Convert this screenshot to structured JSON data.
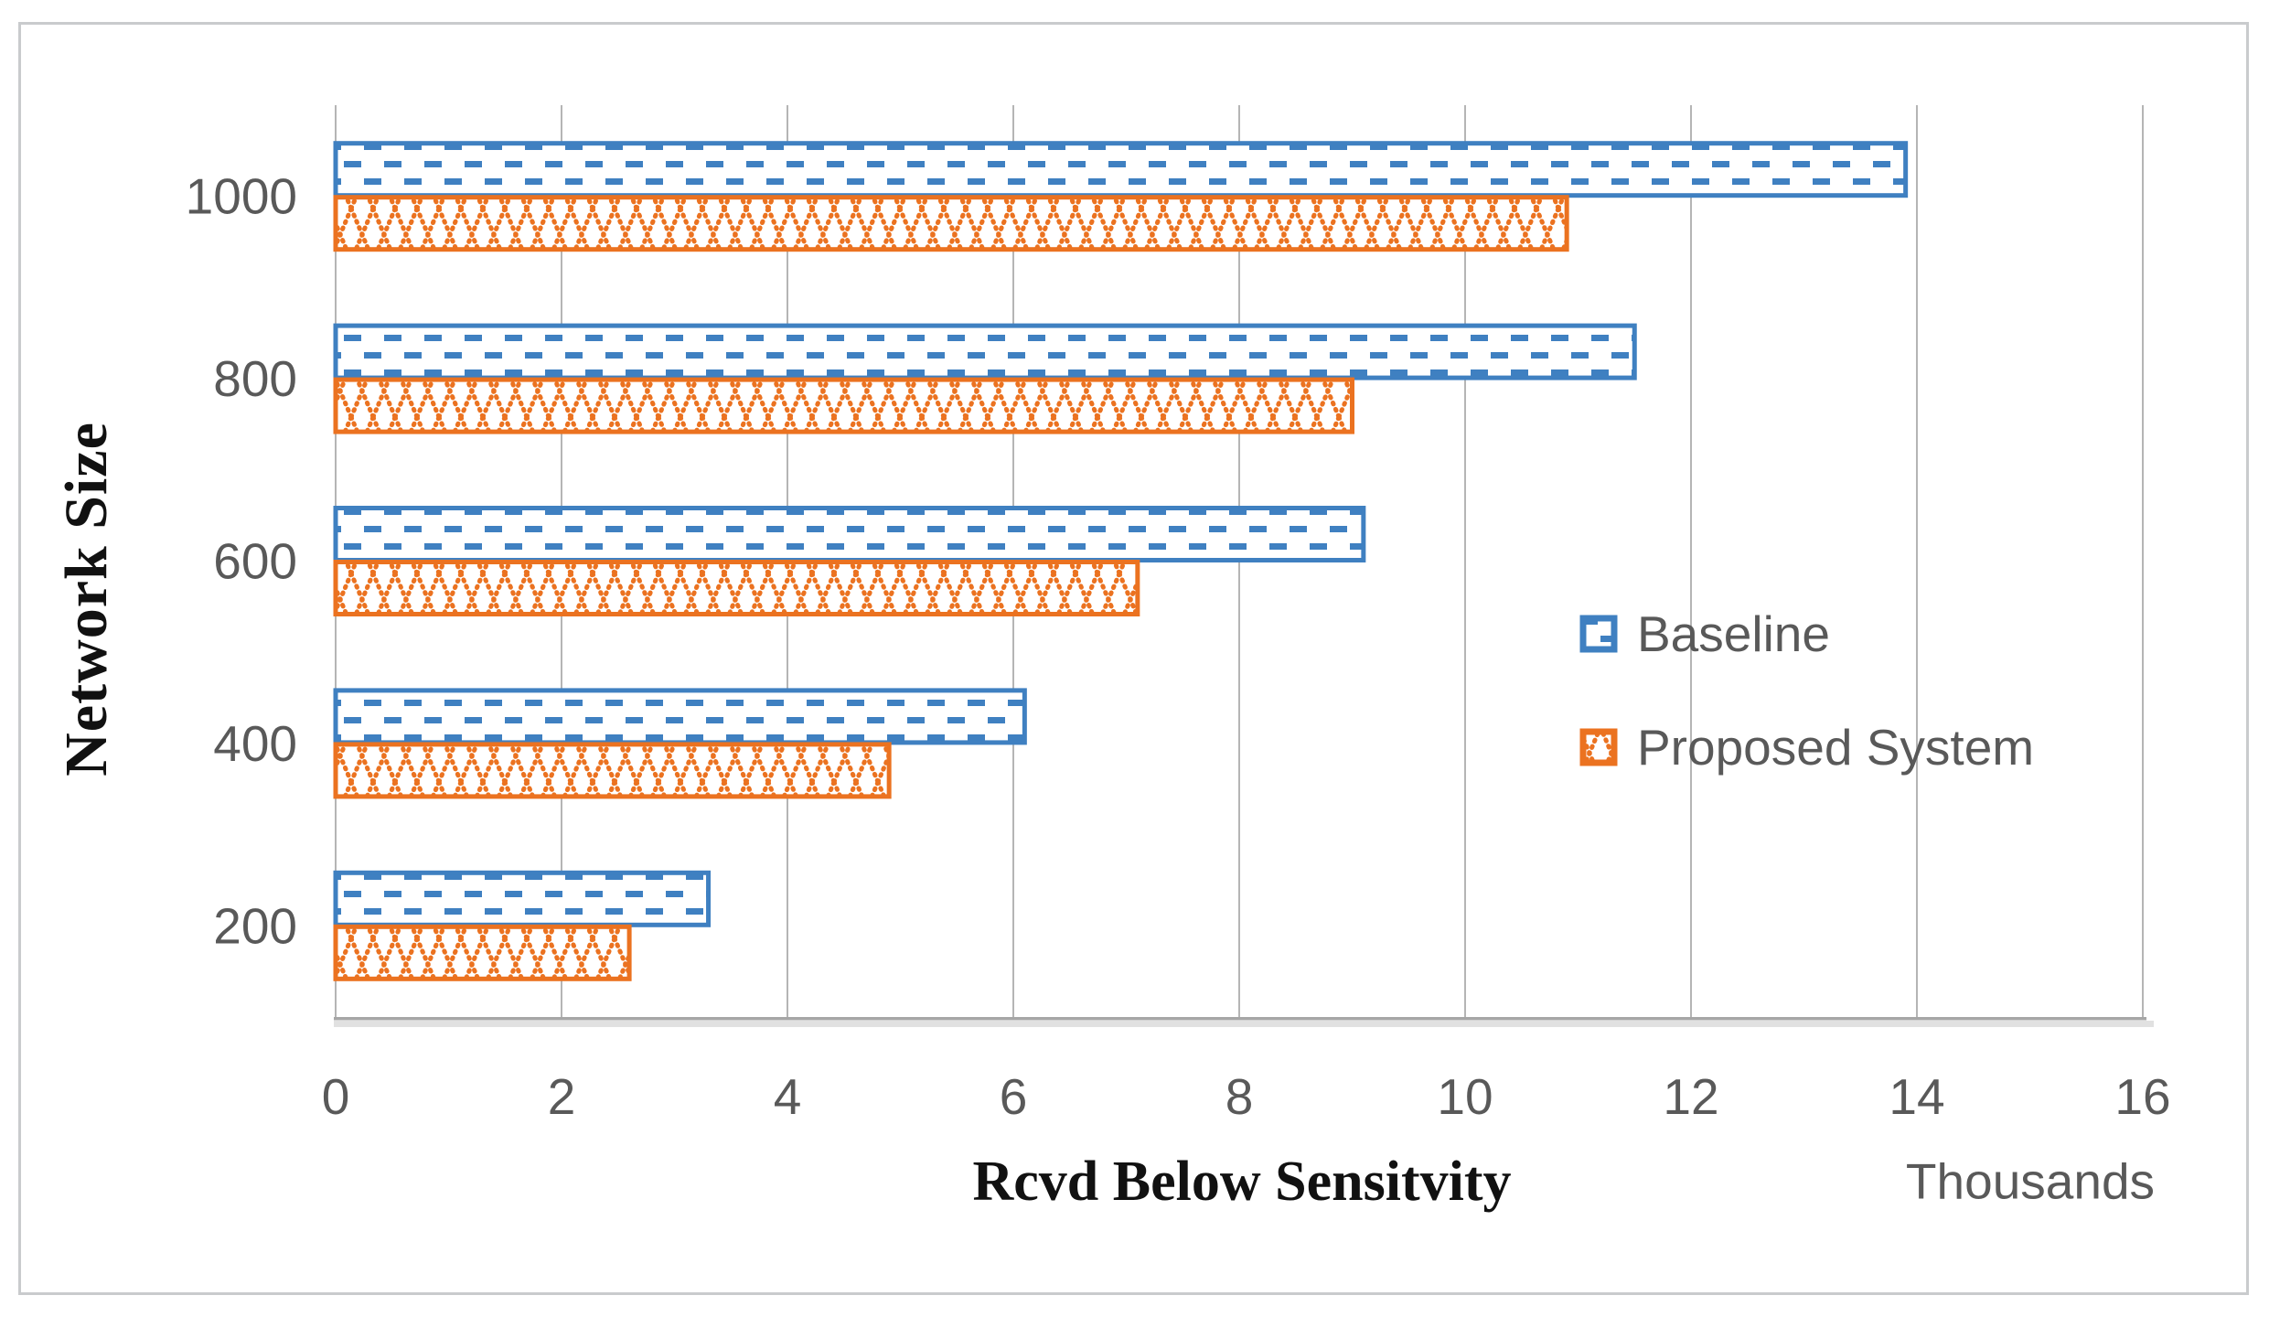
{
  "chart_data": {
    "type": "bar",
    "orientation": "horizontal",
    "title": "",
    "categories": [
      "1000",
      "800",
      "600",
      "400",
      "200"
    ],
    "series": [
      {
        "name": "Baseline",
        "values": [
          13.9,
          11.5,
          9.1,
          6.1,
          3.3
        ],
        "color": "#3f80c1",
        "pattern": "dashed-rows"
      },
      {
        "name": "Proposed System",
        "values": [
          10.9,
          9.0,
          7.1,
          4.9,
          2.6
        ],
        "color": "#eb7220",
        "pattern": "diagonal-lattice"
      }
    ],
    "xlabel": "Rcvd Below Sensitvity",
    "x_unit_label": "Thousands",
    "ylabel": "Network Size",
    "xlim": [
      0,
      16
    ],
    "xticks": [
      "0",
      "2",
      "4",
      "6",
      "8",
      "10",
      "12",
      "14",
      "16"
    ],
    "grid": "vertical",
    "legend_position": "middle-right"
  },
  "colors": {
    "gridline": "#b5b5b5",
    "axis_line": "#a6a6a6",
    "axis_shadow": "#d9d9d9",
    "tick_text": "#595959",
    "legend_text": "#595959",
    "title_text": "#111111",
    "frame_border": "#c9cbcd",
    "background": "#ffffff"
  }
}
